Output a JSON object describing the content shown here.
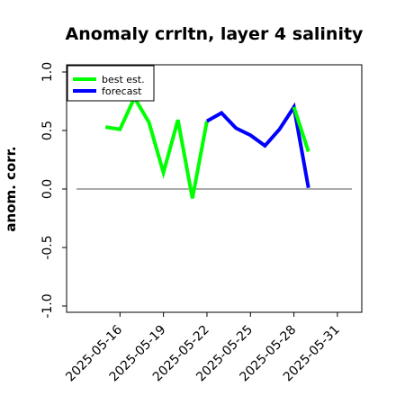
{
  "chart_data": {
    "type": "line",
    "title": "Anomaly crrltn, layer 4 salinity",
    "ylabel": "anom. corr.",
    "xlabel": "",
    "ylim": [
      -1.0,
      1.0
    ],
    "yticks": [
      -1.0,
      -0.5,
      0.0,
      0.5,
      1.0
    ],
    "ytick_labels": [
      "-1.0",
      "-0.5",
      "0.0",
      "0.5",
      "1.0"
    ],
    "x_range": [
      "2025-05-13",
      "2025-06-01"
    ],
    "xticks": [
      {
        "label": "2025-05-16",
        "color": "#000000"
      },
      {
        "label": "2025-05-19",
        "color": "#000000"
      },
      {
        "label": "2025-05-22",
        "color": "#2e8b22"
      },
      {
        "label": "2025-05-25",
        "color": "#000000"
      },
      {
        "label": "2025-05-28",
        "color": "#000000"
      },
      {
        "label": "2025-05-31",
        "color": "#000000"
      }
    ],
    "zero_line": 0.0,
    "legend_position": "upper-left",
    "series": [
      {
        "name": "best est.",
        "color": "#00ff00",
        "x": [
          "2025-05-15",
          "2025-05-16",
          "2025-05-17",
          "2025-05-18",
          "2025-05-19",
          "2025-05-20",
          "2025-05-21",
          "2025-05-22"
        ],
        "values": [
          0.53,
          0.51,
          0.78,
          0.57,
          0.14,
          0.59,
          -0.08,
          0.58
        ]
      },
      {
        "name": "forecast",
        "color": "#0000ff",
        "x": [
          "2025-05-22",
          "2025-05-23",
          "2025-05-24",
          "2025-05-25",
          "2025-05-26",
          "2025-05-27",
          "2025-05-28",
          "2025-05-29"
        ],
        "values": [
          0.58,
          0.65,
          0.52,
          0.46,
          0.37,
          0.51,
          0.7,
          0.01
        ]
      },
      {
        "name": "",
        "color": "#00ff00",
        "x": [
          "2025-05-28",
          "2025-05-29"
        ],
        "values": [
          0.7,
          0.32
        ]
      }
    ]
  }
}
